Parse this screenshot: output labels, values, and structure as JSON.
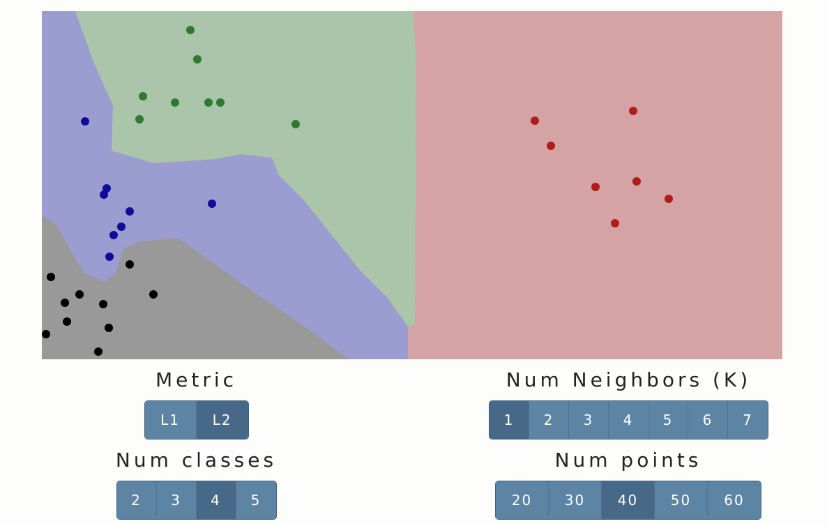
{
  "metric": {
    "title": "Metric",
    "options": [
      "L1",
      "L2"
    ],
    "selected": "L2"
  },
  "neighbors": {
    "title": "Num Neighbors (K)",
    "options": [
      "1",
      "2",
      "3",
      "4",
      "5",
      "6",
      "7"
    ],
    "selected": "1"
  },
  "classes": {
    "title": "Num classes",
    "options": [
      "2",
      "3",
      "4",
      "5"
    ],
    "selected": "4"
  },
  "points": {
    "title": "Num points",
    "options": [
      "20",
      "30",
      "40",
      "50",
      "60"
    ],
    "selected": "40"
  },
  "colors": {
    "blue_region": "#9b9dd0",
    "green_region": "#abc5aa",
    "red_region": "#d5a3a3",
    "gray_region": "#999999",
    "blue_point": "#0d0d99",
    "green_point": "#2e7a2e",
    "red_point": "#b01c1c",
    "black_point": "#000000"
  }
}
